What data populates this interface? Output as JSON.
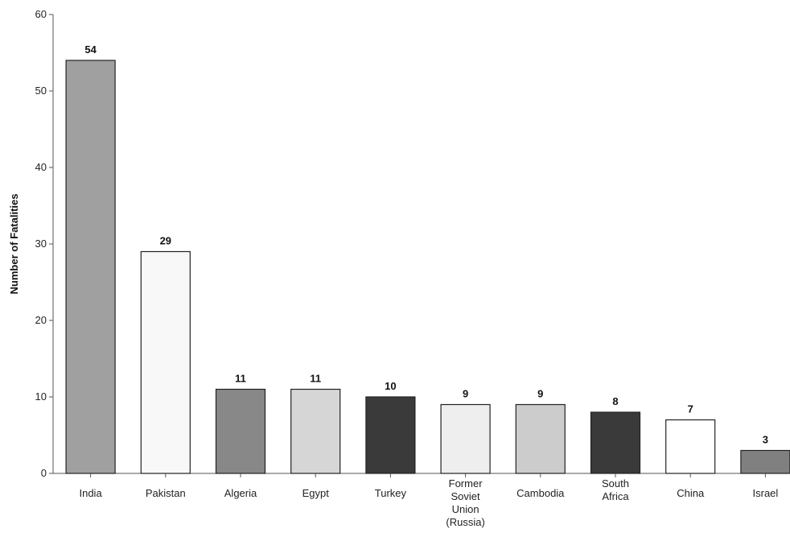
{
  "chart_data": {
    "type": "bar",
    "title": "",
    "xlabel": "",
    "ylabel": "Number of Fatalities",
    "ylim": [
      0,
      60
    ],
    "yticks": [
      0,
      10,
      20,
      30,
      40,
      50,
      60
    ],
    "grid": false,
    "legend": "none",
    "categories": [
      "India",
      "Pakistan",
      "Algeria",
      "Egypt",
      "Turkey",
      "Former Soviet Union (Russia)",
      "Cambodia",
      "South Africa",
      "China",
      "Israel"
    ],
    "values": [
      54,
      29,
      11,
      11,
      10,
      9,
      9,
      8,
      7,
      3
    ],
    "bar_colors": [
      "#a0a0a0",
      "#f8f8f8",
      "#888888",
      "#d6d6d6",
      "#3a3a3a",
      "#eeeeee",
      "#cccccc",
      "#3a3a3a",
      "#ffffff",
      "#808080"
    ]
  }
}
